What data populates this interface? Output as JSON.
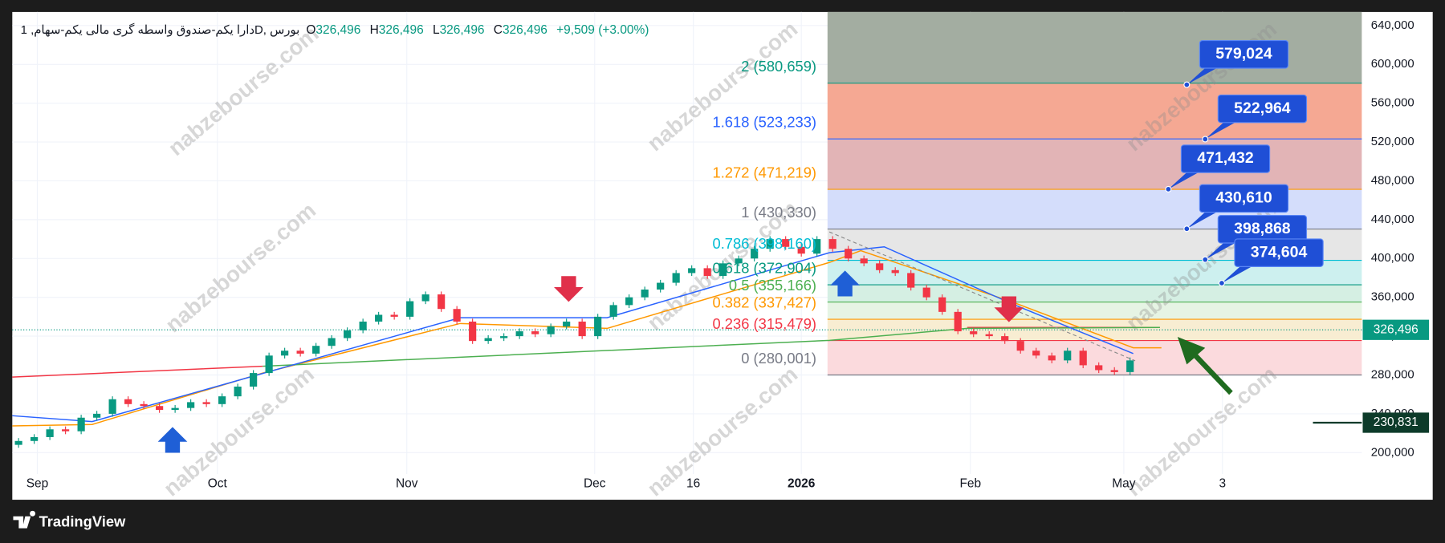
{
  "chart_data": {
    "type": "candlestick",
    "title": "دارا یکم-صندوق واسطه گری مالی یکم-سهام, 1D, بورس",
    "ohlc": [
      {
        "key": "O",
        "value": "326,496"
      },
      {
        "key": "H",
        "value": "326,496"
      },
      {
        "key": "L",
        "value": "326,496"
      },
      {
        "key": "C",
        "value": "326,496"
      }
    ],
    "change": "+9,509 (+3.00%)",
    "watermark": "nabzebourse.com",
    "brand": "TradingView",
    "up_color": "#089981",
    "down_color": "#f23645",
    "grid": true,
    "ylim": [
      178000,
      654000
    ],
    "yticks": [
      {
        "value": 200000,
        "label": "200,000"
      },
      {
        "value": 240000,
        "label": "240,000"
      },
      {
        "value": 280000,
        "label": "280,000"
      },
      {
        "value": 320000,
        "label": "320,000"
      },
      {
        "value": 360000,
        "label": "360,000"
      },
      {
        "value": 400000,
        "label": "400,000"
      },
      {
        "value": 440000,
        "label": "440,000"
      },
      {
        "value": 480000,
        "label": "480,000"
      },
      {
        "value": 520000,
        "label": "520,000"
      },
      {
        "value": 560000,
        "label": "560,000"
      },
      {
        "value": 600000,
        "label": "600,000"
      },
      {
        "value": 640000,
        "label": "640,000"
      }
    ],
    "xlim": [
      -0.4,
      85.8
    ],
    "xticks": [
      {
        "value": 1.2,
        "label": "Sep"
      },
      {
        "value": 12.7,
        "label": "Oct"
      },
      {
        "value": 24.8,
        "label": "Nov"
      },
      {
        "value": 36.8,
        "label": "Dec"
      },
      {
        "value": 43.1,
        "label": "16"
      },
      {
        "value": 50,
        "label": "2026"
      },
      {
        "value": 60.8,
        "label": "Feb"
      },
      {
        "value": 70.6,
        "label": "May"
      },
      {
        "value": 76.9,
        "label": "3"
      }
    ],
    "candles": [
      [
        208000,
        215000,
        205000,
        212000
      ],
      [
        212000,
        219000,
        209000,
        216000
      ],
      [
        216000,
        227000,
        213000,
        224000
      ],
      [
        224000,
        227000,
        219000,
        222000
      ],
      [
        222000,
        239000,
        219000,
        236000
      ],
      [
        236000,
        243000,
        233000,
        240000
      ],
      [
        240000,
        258000,
        237000,
        255000
      ],
      [
        255000,
        258000,
        247000,
        250000
      ],
      [
        250000,
        253000,
        245000,
        248000
      ],
      [
        248000,
        251000,
        241000,
        244000
      ],
      [
        244000,
        249000,
        241000,
        246000
      ],
      [
        246000,
        255000,
        243000,
        252000
      ],
      [
        252000,
        255000,
        247000,
        250000
      ],
      [
        250000,
        261000,
        247000,
        258000
      ],
      [
        258000,
        271000,
        255000,
        268000
      ],
      [
        268000,
        285000,
        265000,
        282000
      ],
      [
        282000,
        303000,
        279000,
        300000
      ],
      [
        300000,
        308000,
        297000,
        305000
      ],
      [
        305000,
        308000,
        299000,
        302000
      ],
      [
        302000,
        313000,
        299000,
        310000
      ],
      [
        310000,
        321000,
        307000,
        318000
      ],
      [
        318000,
        329000,
        315000,
        326000
      ],
      [
        326000,
        338000,
        323000,
        335000
      ],
      [
        335000,
        345000,
        332000,
        342000
      ],
      [
        342000,
        345000,
        337000,
        340000
      ],
      [
        340000,
        359000,
        337000,
        356000
      ],
      [
        356000,
        366000,
        353000,
        363000
      ],
      [
        363000,
        366000,
        345000,
        348000
      ],
      [
        348000,
        351000,
        332000,
        335000
      ],
      [
        335000,
        338000,
        312000,
        315000
      ],
      [
        315000,
        321000,
        312000,
        318000
      ],
      [
        318000,
        323000,
        315000,
        320000
      ],
      [
        320000,
        328000,
        317000,
        325000
      ],
      [
        325000,
        328000,
        319000,
        322000
      ],
      [
        322000,
        333000,
        319000,
        330000
      ],
      [
        330000,
        338000,
        327000,
        335000
      ],
      [
        335000,
        338000,
        317000,
        320000
      ],
      [
        320000,
        343000,
        317000,
        340000
      ],
      [
        340000,
        355000,
        337000,
        352000
      ],
      [
        352000,
        363000,
        349000,
        360000
      ],
      [
        360000,
        371000,
        357000,
        368000
      ],
      [
        368000,
        378000,
        365000,
        375000
      ],
      [
        375000,
        388000,
        372000,
        385000
      ],
      [
        385000,
        393000,
        382000,
        390000
      ],
      [
        390000,
        393000,
        379000,
        382000
      ],
      [
        382000,
        398000,
        379000,
        395000
      ],
      [
        395000,
        403000,
        392000,
        400000
      ],
      [
        400000,
        413000,
        397000,
        410000
      ],
      [
        410000,
        423000,
        407000,
        420000
      ],
      [
        420000,
        423000,
        409000,
        412000
      ],
      [
        412000,
        415000,
        402000,
        405000
      ],
      [
        405000,
        423000,
        402000,
        420000
      ],
      [
        420000,
        423000,
        407000,
        410000
      ],
      [
        410000,
        413000,
        397000,
        400000
      ],
      [
        400000,
        403000,
        392000,
        395000
      ],
      [
        395000,
        398000,
        385000,
        388000
      ],
      [
        388000,
        391000,
        382000,
        385000
      ],
      [
        385000,
        388000,
        367000,
        370000
      ],
      [
        370000,
        373000,
        357000,
        360000
      ],
      [
        360000,
        363000,
        342000,
        345000
      ],
      [
        345000,
        348000,
        322000,
        325000
      ],
      [
        325000,
        328000,
        319000,
        322000
      ],
      [
        322000,
        325000,
        317000,
        320000
      ],
      [
        320000,
        323000,
        312000,
        315000
      ],
      [
        315000,
        318000,
        302000,
        305000
      ],
      [
        305000,
        308000,
        297000,
        300000
      ],
      [
        300000,
        303000,
        292000,
        295000
      ],
      [
        295000,
        308000,
        292000,
        305000
      ],
      [
        305000,
        308000,
        287000,
        290000
      ],
      [
        290000,
        293000,
        282000,
        285000
      ],
      [
        285000,
        288000,
        280000,
        283000
      ],
      [
        283000,
        298000,
        280000,
        295000
      ]
    ],
    "lines": [
      {
        "color": "#f23645",
        "x": [
          -0.4,
          15.6,
          38,
          60.6,
          72.9
        ],
        "values": [
          277800,
          289000,
          null,
          329000,
          329000
        ]
      },
      {
        "color": "#ff9800",
        "x": [
          -0.4,
          4.7,
          15.6,
          28.2,
          37.6,
          51.8,
          53.8,
          63.5,
          71.2,
          73
        ],
        "values": [
          227500,
          229000,
          282000,
          333000,
          328000,
          396000,
          408000,
          355000,
          308000,
          308000
        ]
      },
      {
        "color": "#4caf50",
        "x": [
          15.6,
          51.8,
          60.6,
          72.9
        ],
        "values": [
          289000,
          315700,
          328000,
          329000
        ]
      },
      {
        "color": "#2962ff",
        "x": [
          -0.4,
          4.7,
          28.2,
          37.6,
          51.8,
          55.3,
          63.5,
          71.2
        ],
        "values": [
          238000,
          232000,
          339000,
          339000,
          406000,
          412000,
          353000,
          302000
        ]
      }
    ],
    "fib_levels": [
      {
        "label": "0 (280,001)",
        "value": 280001,
        "color": "#787b86",
        "fill": "#fbdadd"
      },
      {
        "label": "0.236 (315,479)",
        "value": 315479,
        "color": "#f23645",
        "fill": "#f8edd2"
      },
      {
        "label": "0.382 (337,427)",
        "value": 337427,
        "color": "#ff9800",
        "fill": "#e6f4e4"
      },
      {
        "label": "0.5 (355,166)",
        "value": 355166,
        "color": "#4caf50",
        "fill": "#d5efe3"
      },
      {
        "label": "0.618 (372,904)",
        "value": 372904,
        "color": "#089981",
        "fill": "#cdf0ef"
      },
      {
        "label": "0.786 (398,160)",
        "value": 398160,
        "color": "#00bcd4",
        "fill": "#e6e6e6"
      },
      {
        "label": "1 (430,330)",
        "value": 430330,
        "color": "#787b86",
        "fill": "#d4ddfb"
      },
      {
        "label": "1.272 (471,219)",
        "value": 471219,
        "color": "#ff9800",
        "fill": "#e2b4b6"
      },
      {
        "label": "1.618 (523,233)",
        "value": 523233,
        "color": "#2962ff",
        "fill": "#f5a893"
      },
      {
        "label": "2 (580,659)",
        "value": 580659,
        "color": "#089981",
        "fill": "#a3ada1"
      }
    ],
    "callouts": [
      {
        "value": 579024,
        "label": "579,024"
      },
      {
        "value": 522964,
        "label": "522,964"
      },
      {
        "value": 471432,
        "label": "471,432"
      },
      {
        "value": 430610,
        "label": "430,610"
      },
      {
        "value": 398868,
        "label": "398,868"
      },
      {
        "value": 374604,
        "label": "374,604"
      }
    ],
    "last_price": {
      "value": 326496,
      "label": "326,496"
    },
    "marker": {
      "value": 230831,
      "label": "230,831"
    }
  }
}
